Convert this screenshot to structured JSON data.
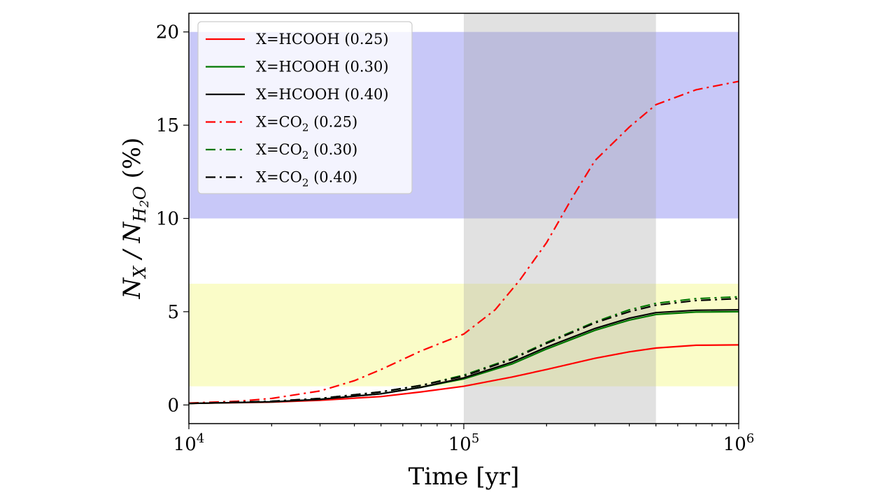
{
  "chart_data": {
    "type": "line",
    "xlabel": "Time [yr]",
    "ylabel": {
      "parts": [
        "N",
        "X",
        " / N",
        "H",
        "2",
        "O",
        " (%)"
      ]
    },
    "x_scale": "log",
    "xlim": [
      10000,
      1000000
    ],
    "ylim": [
      -1,
      21
    ],
    "x_ticks": [
      {
        "value": 10000,
        "base": "10",
        "exp": "4"
      },
      {
        "value": 100000,
        "base": "10",
        "exp": "5"
      },
      {
        "value": 1000000,
        "base": "10",
        "exp": "6"
      }
    ],
    "y_ticks": [
      {
        "value": 0,
        "label": "0"
      },
      {
        "value": 5,
        "label": "5"
      },
      {
        "value": 10,
        "label": "10"
      },
      {
        "value": 15,
        "label": "15"
      },
      {
        "value": 20,
        "label": "20"
      }
    ],
    "shaded_regions": [
      {
        "orientation": "horizontal",
        "from": 10,
        "to": 20,
        "color": "#c8c8f8"
      },
      {
        "orientation": "horizontal",
        "from": 1,
        "to": 6.5,
        "color": "#fafcc8"
      },
      {
        "orientation": "vertical",
        "from": 100000,
        "to": 500000,
        "color": "#aaaaaa",
        "opacity": 0.35
      }
    ],
    "legend": {
      "position": "top-left",
      "entries": [
        {
          "species": "X=HCOOH",
          "sub": "",
          "tail": " (0.25)"
        },
        {
          "species": "X=HCOOH",
          "sub": "",
          "tail": " (0.30)"
        },
        {
          "species": "X=HCOOH",
          "sub": "",
          "tail": " (0.40)"
        },
        {
          "species": "X=CO",
          "sub": "2",
          "tail": " (0.25)"
        },
        {
          "species": "X=CO",
          "sub": "2",
          "tail": " (0.30)"
        },
        {
          "species": "X=CO",
          "sub": "2",
          "tail": " (0.40)"
        }
      ]
    },
    "series": [
      {
        "color": "#ff0000",
        "style": "solid",
        "x": [
          10000,
          20000,
          30000,
          50000,
          70000,
          100000,
          150000,
          200000,
          300000,
          400000,
          500000,
          700000,
          1000000
        ],
        "y": [
          0.08,
          0.15,
          0.25,
          0.45,
          0.7,
          1.0,
          1.5,
          1.9,
          2.5,
          2.85,
          3.05,
          3.2,
          3.22
        ]
      },
      {
        "color": "#007700",
        "style": "solid",
        "x": [
          10000,
          20000,
          30000,
          50000,
          70000,
          100000,
          150000,
          200000,
          300000,
          400000,
          500000,
          700000,
          1000000
        ],
        "y": [
          0.08,
          0.17,
          0.3,
          0.6,
          0.95,
          1.4,
          2.2,
          3.0,
          4.0,
          4.55,
          4.85,
          4.98,
          5.0
        ]
      },
      {
        "color": "#000000",
        "style": "solid",
        "x": [
          10000,
          20000,
          30000,
          50000,
          70000,
          100000,
          150000,
          200000,
          300000,
          400000,
          500000,
          700000,
          1000000
        ],
        "y": [
          0.08,
          0.17,
          0.3,
          0.6,
          0.95,
          1.45,
          2.3,
          3.1,
          4.1,
          4.65,
          4.95,
          5.08,
          5.1
        ]
      },
      {
        "color": "#ff0000",
        "style": "dashdot",
        "x": [
          10000,
          15000,
          20000,
          30000,
          40000,
          50000,
          70000,
          100000,
          130000,
          160000,
          200000,
          250000,
          300000,
          400000,
          500000,
          700000,
          1000000
        ],
        "y": [
          0.1,
          0.2,
          0.35,
          0.75,
          1.3,
          1.9,
          2.9,
          3.8,
          5.1,
          6.7,
          8.7,
          11.2,
          13.1,
          14.9,
          16.1,
          16.9,
          17.35
        ]
      },
      {
        "color": "#007700",
        "style": "dashdot",
        "x": [
          10000,
          20000,
          30000,
          50000,
          70000,
          100000,
          150000,
          200000,
          300000,
          400000,
          500000,
          700000,
          1000000
        ],
        "y": [
          0.08,
          0.2,
          0.35,
          0.7,
          1.05,
          1.6,
          2.5,
          3.35,
          4.45,
          5.1,
          5.45,
          5.7,
          5.8
        ]
      },
      {
        "color": "#000000",
        "style": "dashdot",
        "x": [
          10000,
          20000,
          30000,
          50000,
          70000,
          100000,
          150000,
          200000,
          300000,
          400000,
          500000,
          700000,
          1000000
        ],
        "y": [
          0.08,
          0.2,
          0.35,
          0.7,
          1.05,
          1.55,
          2.45,
          3.3,
          4.4,
          5.0,
          5.35,
          5.6,
          5.7
        ]
      }
    ]
  }
}
